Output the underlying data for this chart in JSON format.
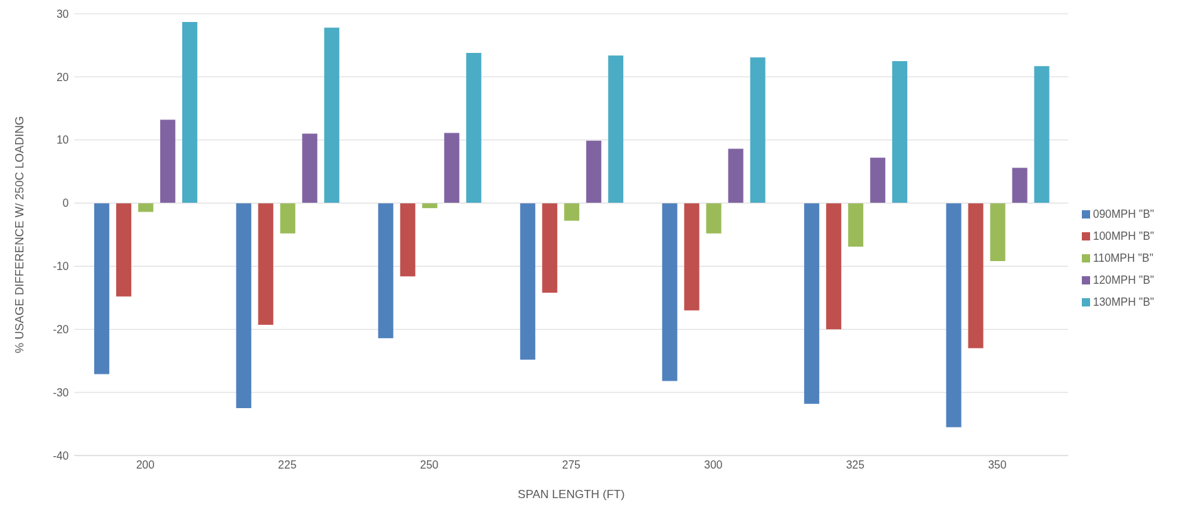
{
  "chart_data": {
    "type": "bar",
    "xlabel": "SPAN LENGTH (FT)",
    "ylabel": "% USAGE DIFFERENCE W/ 250C LOADING",
    "categories": [
      "200",
      "225",
      "250",
      "275",
      "300",
      "325",
      "350"
    ],
    "series": [
      {
        "name": "090MPH \"B\"",
        "color": "#4f81bd",
        "values": [
          -27.1,
          -32.5,
          -21.4,
          -24.8,
          -28.2,
          -31.8,
          -35.5
        ]
      },
      {
        "name": "100MPH \"B\"",
        "color": "#c0504d",
        "values": [
          -14.8,
          -19.3,
          -11.6,
          -14.2,
          -17.0,
          -20.0,
          -23.0
        ]
      },
      {
        "name": "110MPH \"B\"",
        "color": "#9bbb59",
        "values": [
          -1.4,
          -4.8,
          -0.8,
          -2.8,
          -4.8,
          -6.9,
          -9.2
        ]
      },
      {
        "name": "120MPH \"B\"",
        "color": "#8064a2",
        "values": [
          13.2,
          11.0,
          11.1,
          9.9,
          8.6,
          7.2,
          5.6
        ]
      },
      {
        "name": "130MPH \"B\"",
        "color": "#4bacc6",
        "values": [
          28.7,
          27.8,
          23.8,
          23.4,
          23.1,
          22.5,
          21.7
        ]
      }
    ],
    "ylim": [
      -40,
      30
    ],
    "yticks": [
      -40,
      -30,
      -20,
      -10,
      0,
      10,
      20,
      30
    ],
    "grid": "y",
    "legend": "right"
  }
}
